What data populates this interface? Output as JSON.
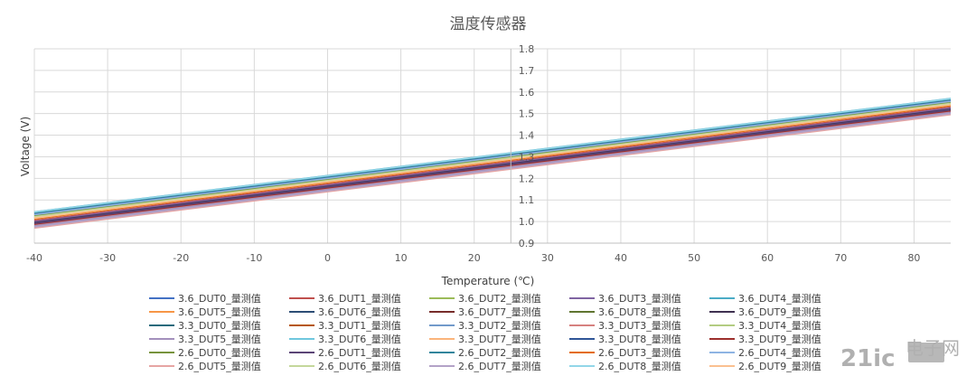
{
  "chart_data": {
    "type": "line",
    "title": "温度传感器",
    "xlabel": "Temperature (℃)",
    "ylabel": "Voltage (V)",
    "xlim": [
      -40,
      85
    ],
    "ylim": [
      0.9,
      1.8
    ],
    "x_ticks": [
      -40,
      -30,
      -20,
      -10,
      0,
      10,
      20,
      30,
      40,
      50,
      60,
      70,
      80
    ],
    "x_tick_labels": [
      "-40",
      "-30",
      "-20",
      "-10",
      "0",
      "10",
      "20",
      "30",
      "40",
      "50",
      "60",
      "70",
      "80"
    ],
    "y_ticks": [
      0.9,
      1.0,
      1.1,
      1.2,
      1.3,
      1.4,
      1.5,
      1.6,
      1.7,
      1.8
    ],
    "y_tick_labels": [
      "0.9",
      "1.0",
      "1.1",
      "1.2",
      "1.3",
      "1.4",
      "1.5",
      "1.6",
      "1.7",
      "1.8"
    ],
    "x_grid": true,
    "y_grid": true,
    "legend_position": "bottom",
    "series": [
      {
        "name": "3.6_DUT0_量测值",
        "color": "#4472C4",
        "x": [
          -40,
          85
        ],
        "y": [
          1.04,
          1.565
        ]
      },
      {
        "name": "3.6_DUT1_量测值",
        "color": "#C0504D",
        "x": [
          -40,
          85
        ],
        "y": [
          1.005,
          1.53
        ]
      },
      {
        "name": "3.6_DUT2_量测值",
        "color": "#9BBB59",
        "x": [
          -40,
          85
        ],
        "y": [
          1.03,
          1.555
        ]
      },
      {
        "name": "3.6_DUT3_量测值",
        "color": "#8064A2",
        "x": [
          -40,
          85
        ],
        "y": [
          1.0,
          1.525
        ]
      },
      {
        "name": "3.6_DUT4_量测值",
        "color": "#4BACC6",
        "x": [
          -40,
          85
        ],
        "y": [
          1.045,
          1.57
        ]
      },
      {
        "name": "3.6_DUT5_量测值",
        "color": "#F79646",
        "x": [
          -40,
          85
        ],
        "y": [
          1.02,
          1.545
        ]
      },
      {
        "name": "3.6_DUT6_量测值",
        "color": "#2C4D75",
        "x": [
          -40,
          85
        ],
        "y": [
          1.035,
          1.56
        ]
      },
      {
        "name": "3.6_DUT7_量测值",
        "color": "#772C2A",
        "x": [
          -40,
          85
        ],
        "y": [
          0.99,
          1.515
        ]
      },
      {
        "name": "3.6_DUT8_量测值",
        "color": "#5F7530",
        "x": [
          -40,
          85
        ],
        "y": [
          1.028,
          1.553
        ]
      },
      {
        "name": "3.6_DUT9_量测值",
        "color": "#3F3151",
        "x": [
          -40,
          85
        ],
        "y": [
          0.995,
          1.52
        ]
      },
      {
        "name": "3.3_DUT0_量测值",
        "color": "#276A7C",
        "x": [
          -40,
          85
        ],
        "y": [
          1.038,
          1.563
        ]
      },
      {
        "name": "3.3_DUT1_量测值",
        "color": "#B65708",
        "x": [
          -40,
          85
        ],
        "y": [
          1.015,
          1.54
        ]
      },
      {
        "name": "3.3_DUT2_量测值",
        "color": "#729ACA",
        "x": [
          -40,
          85
        ],
        "y": [
          1.033,
          1.558
        ]
      },
      {
        "name": "3.3_DUT3_量测值",
        "color": "#D6817F",
        "x": [
          -40,
          85
        ],
        "y": [
          0.985,
          1.51
        ]
      },
      {
        "name": "3.3_DUT4_量测值",
        "color": "#B3CC82",
        "x": [
          -40,
          85
        ],
        "y": [
          1.025,
          1.55
        ]
      },
      {
        "name": "3.3_DUT5_量测值",
        "color": "#A390BC",
        "x": [
          -40,
          85
        ],
        "y": [
          0.98,
          1.505
        ]
      },
      {
        "name": "3.3_DUT6_量测值",
        "color": "#6FC7DE",
        "x": [
          -40,
          85
        ],
        "y": [
          1.042,
          1.567
        ]
      },
      {
        "name": "3.3_DUT7_量测值",
        "color": "#FBB47B",
        "x": [
          -40,
          85
        ],
        "y": [
          1.018,
          1.543
        ]
      },
      {
        "name": "3.3_DUT8_量测值",
        "color": "#2F5597",
        "x": [
          -40,
          85
        ],
        "y": [
          1.036,
          1.561
        ]
      },
      {
        "name": "3.3_DUT9_量测值",
        "color": "#9C2F2C",
        "x": [
          -40,
          85
        ],
        "y": [
          0.988,
          1.513
        ]
      },
      {
        "name": "2.6_DUT0_量测值",
        "color": "#77933C",
        "x": [
          -40,
          85
        ],
        "y": [
          1.026,
          1.551
        ]
      },
      {
        "name": "2.6_DUT1_量测值",
        "color": "#5B4476",
        "x": [
          -40,
          85
        ],
        "y": [
          0.992,
          1.517
        ]
      },
      {
        "name": "2.6_DUT2_量测值",
        "color": "#31859C",
        "x": [
          -40,
          85
        ],
        "y": [
          1.04,
          1.565
        ]
      },
      {
        "name": "2.6_DUT3_量测值",
        "color": "#E46C0A",
        "x": [
          -40,
          85
        ],
        "y": [
          1.012,
          1.537
        ]
      },
      {
        "name": "2.6_DUT4_量测值",
        "color": "#8EB4E3",
        "x": [
          -40,
          85
        ],
        "y": [
          1.032,
          1.557
        ]
      },
      {
        "name": "2.6_DUT5_量测值",
        "color": "#E6A5A3",
        "x": [
          -40,
          85
        ],
        "y": [
          0.97,
          1.495
        ]
      },
      {
        "name": "2.6_DUT6_量测值",
        "color": "#C4D79B",
        "x": [
          -40,
          85
        ],
        "y": [
          1.022,
          1.547
        ]
      },
      {
        "name": "2.6_DUT7_量测值",
        "color": "#B3A2C7",
        "x": [
          -40,
          85
        ],
        "y": [
          0.975,
          1.5
        ]
      },
      {
        "name": "2.6_DUT8_量测值",
        "color": "#92D6E8",
        "x": [
          -40,
          85
        ],
        "y": [
          1.044,
          1.569
        ]
      },
      {
        "name": "2.6_DUT9_量测值",
        "color": "#FAC090",
        "x": [
          -40,
          85
        ],
        "y": [
          1.016,
          1.541
        ]
      }
    ]
  },
  "watermark": {
    "logo_text": "21ic",
    "cn_text": "电子网"
  }
}
